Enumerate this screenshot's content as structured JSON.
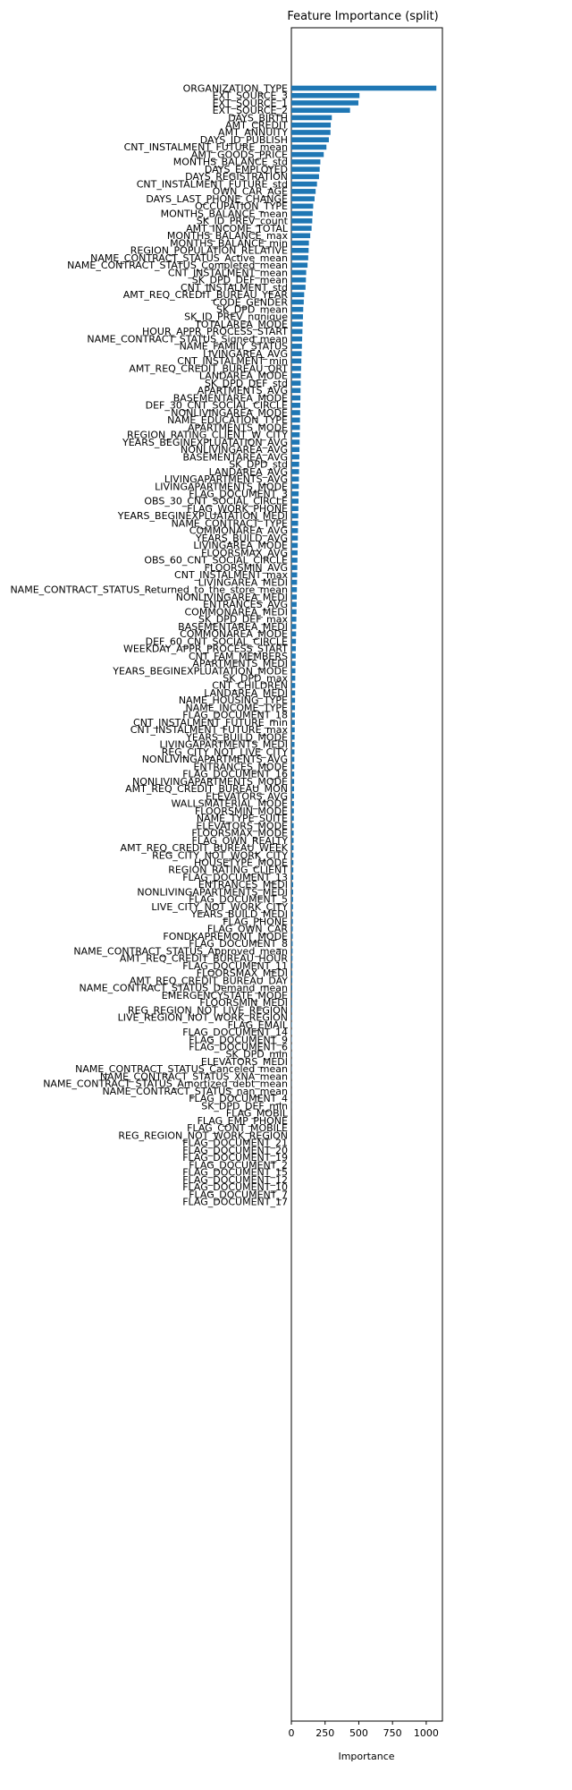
{
  "chart_data": {
    "type": "bar",
    "orientation": "horizontal",
    "title": "Feature Importance (split)",
    "xlabel": "Importance",
    "ylabel": "",
    "xlim": [
      0,
      1120
    ],
    "xticks": [
      0,
      250,
      500,
      750,
      1000
    ],
    "bar_color": "#1f77b4",
    "categories": [
      "ORGANIZATION_TYPE",
      "EXT_SOURCE_3",
      "EXT_SOURCE_1",
      "EXT_SOURCE_2",
      "DAYS_BIRTH",
      "AMT_CREDIT",
      "AMT_ANNUITY",
      "DAYS_ID_PUBLISH",
      "CNT_INSTALMENT_FUTURE_mean",
      "AMT_GOODS_PRICE",
      "MONTHS_BALANCE_std",
      "DAYS_EMPLOYED",
      "DAYS_REGISTRATION",
      "CNT_INSTALMENT_FUTURE_std",
      "OWN_CAR_AGE",
      "DAYS_LAST_PHONE_CHANGE",
      "OCCUPATION_TYPE",
      "MONTHS_BALANCE_mean",
      "SK_ID_PREV_count",
      "AMT_INCOME_TOTAL",
      "MONTHS_BALANCE_max",
      "MONTHS_BALANCE_min",
      "REGION_POPULATION_RELATIVE",
      "NAME_CONTRACT_STATUS_Active_mean",
      "NAME_CONTRACT_STATUS_Completed_mean",
      "CNT_INSTALMENT_mean",
      "SK_DPD_DEF_mean",
      "CNT_INSTALMENT_std",
      "AMT_REQ_CREDIT_BUREAU_YEAR",
      "CODE_GENDER",
      "SK_DPD_mean",
      "SK_ID_PREV_nunique",
      "TOTALAREA_MODE",
      "HOUR_APPR_PROCESS_START",
      "NAME_CONTRACT_STATUS_Signed_mean",
      "NAME_FAMILY_STATUS",
      "LIVINGAREA_AVG",
      "CNT_INSTALMENT_min",
      "AMT_REQ_CREDIT_BUREAU_QRT",
      "LANDAREA_MODE",
      "SK_DPD_DEF_std",
      "APARTMENTS_AVG",
      "BASEMENTAREA_MODE",
      "DEF_30_CNT_SOCIAL_CIRCLE",
      "NONLIVINGAREA_MODE",
      "NAME_EDUCATION_TYPE",
      "APARTMENTS_MODE",
      "REGION_RATING_CLIENT_W_CITY",
      "YEARS_BEGINEXPLUATATION_AVG",
      "NONLIVINGAREA_AVG",
      "BASEMENTAREA_AVG",
      "SK_DPD_std",
      "LANDAREA_AVG",
      "LIVINGAPARTMENTS_AVG",
      "LIVINGAPARTMENTS_MODE",
      "FLAG_DOCUMENT_3",
      "OBS_30_CNT_SOCIAL_CIRCLE",
      "FLAG_WORK_PHONE",
      "YEARS_BEGINEXPLUATATION_MEDI",
      "NAME_CONTRACT_TYPE",
      "COMMONAREA_AVG",
      "YEARS_BUILD_AVG",
      "LIVINGAREA_MODE",
      "FLOORSMAX_AVG",
      "OBS_60_CNT_SOCIAL_CIRCLE",
      "FLOORSMIN_AVG",
      "CNT_INSTALMENT_max",
      "LIVINGAREA_MEDI",
      "NAME_CONTRACT_STATUS_Returned_to_the_store_mean",
      "NONLIVINGAREA_MEDI",
      "ENTRANCES_AVG",
      "COMMONAREA_MEDI",
      "SK_DPD_DEF_max",
      "BASEMENTAREA_MEDI",
      "COMMONAREA_MODE",
      "DEF_60_CNT_SOCIAL_CIRCLE",
      "WEEKDAY_APPR_PROCESS_START",
      "CNT_FAM_MEMBERS",
      "APARTMENTS_MEDI",
      "YEARS_BEGINEXPLUATATION_MODE",
      "SK_DPD_max",
      "CNT_CHILDREN",
      "LANDAREA_MEDI",
      "NAME_HOUSING_TYPE",
      "NAME_INCOME_TYPE",
      "FLAG_DOCUMENT_18",
      "CNT_INSTALMENT_FUTURE_min",
      "CNT_INSTALMENT_FUTURE_max",
      "YEARS_BUILD_MODE",
      "LIVINGAPARTMENTS_MEDI",
      "REG_CITY_NOT_LIVE_CITY",
      "NONLIVINGAPARTMENTS_AVG",
      "ENTRANCES_MODE",
      "FLAG_DOCUMENT_16",
      "NONLIVINGAPARTMENTS_MODE",
      "AMT_REQ_CREDIT_BUREAU_MON",
      "ELEVATORS_AVG",
      "WALLSMATERIAL_MODE",
      "FLOORSMIN_MODE",
      "NAME_TYPE_SUITE",
      "ELEVATORS_MODE",
      "FLOORSMAX_MODE",
      "FLAG_OWN_REALTY",
      "AMT_REQ_CREDIT_BUREAU_WEEK",
      "REG_CITY_NOT_WORK_CITY",
      "HOUSETYPE_MODE",
      "REGION_RATING_CLIENT",
      "FLAG_DOCUMENT_13",
      "ENTRANCES_MEDI",
      "NONLIVINGAPARTMENTS_MEDI",
      "FLAG_DOCUMENT_5",
      "LIVE_CITY_NOT_WORK_CITY",
      "YEARS_BUILD_MEDI",
      "FLAG_PHONE",
      "FLAG_OWN_CAR",
      "FONDKAPREMONT_MODE",
      "FLAG_DOCUMENT_8",
      "NAME_CONTRACT_STATUS_Approved_mean",
      "AMT_REQ_CREDIT_BUREAU_HOUR",
      "FLAG_DOCUMENT_11",
      "FLOORSMAX_MEDI",
      "AMT_REQ_CREDIT_BUREAU_DAY",
      "NAME_CONTRACT_STATUS_Demand_mean",
      "EMERGENCYSTATE_MODE",
      "FLOORSMIN_MEDI",
      "REG_REGION_NOT_LIVE_REGION",
      "LIVE_REGION_NOT_WORK_REGION",
      "FLAG_EMAIL",
      "FLAG_DOCUMENT_14",
      "FLAG_DOCUMENT_9",
      "FLAG_DOCUMENT_6",
      "SK_DPD_min",
      "ELEVATORS_MEDI",
      "NAME_CONTRACT_STATUS_Canceled_mean",
      "NAME_CONTRACT_STATUS_XNA_mean",
      "NAME_CONTRACT_STATUS_Amortized_debt_mean",
      "NAME_CONTRACT_STATUS_nan_mean",
      "FLAG_DOCUMENT_4",
      "SK_DPD_DEF_min",
      "FLAG_MOBIL",
      "FLAG_EMP_PHONE",
      "FLAG_CONT_MOBILE",
      "REG_REGION_NOT_WORK_REGION",
      "FLAG_DOCUMENT_21",
      "FLAG_DOCUMENT_20",
      "FLAG_DOCUMENT_19",
      "FLAG_DOCUMENT_2",
      "FLAG_DOCUMENT_15",
      "FLAG_DOCUMENT_12",
      "FLAG_DOCUMENT_10",
      "FLAG_DOCUMENT_7",
      "FLAG_DOCUMENT_17"
    ],
    "values": [
      1075,
      505,
      497,
      435,
      300,
      292,
      290,
      278,
      260,
      240,
      215,
      210,
      205,
      190,
      180,
      172,
      162,
      158,
      155,
      150,
      140,
      130,
      128,
      125,
      120,
      110,
      108,
      105,
      95,
      92,
      88,
      86,
      84,
      82,
      80,
      78,
      76,
      74,
      72,
      70,
      69,
      68,
      67,
      66,
      65,
      64,
      63,
      62,
      61,
      60,
      59,
      58,
      57,
      56,
      55,
      54,
      53,
      52,
      51,
      50,
      49,
      48,
      47,
      46,
      45,
      44,
      43,
      42,
      41,
      40,
      39,
      38,
      37,
      36,
      35,
      34,
      33,
      32,
      31,
      30,
      29,
      28.5,
      28,
      27.5,
      27,
      26,
      25.5,
      25,
      24,
      23.5,
      23,
      22,
      21.5,
      21,
      20.5,
      20,
      19.5,
      19,
      18.5,
      18,
      17.5,
      17,
      16.5,
      16,
      15.5,
      15,
      14.5,
      14,
      13.5,
      13,
      12.5,
      12,
      11.5,
      11,
      10.5,
      10,
      9.5,
      9,
      8.5,
      8,
      7.5,
      7,
      6.5,
      6,
      5.5,
      5,
      4.5,
      4,
      3.5,
      3,
      2.8,
      2.5,
      2.2,
      2,
      1.8,
      1.5,
      1.2,
      1,
      0.8,
      0.5,
      0,
      0,
      0,
      0,
      0,
      0,
      0,
      0,
      0,
      0,
      0,
      0
    ]
  }
}
